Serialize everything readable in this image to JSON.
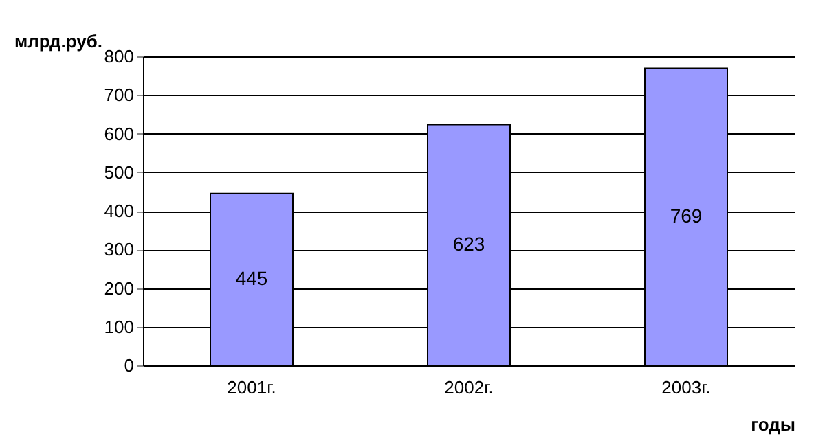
{
  "chart_data": {
    "type": "bar",
    "categories": [
      "2001г.",
      "2002г.",
      "2003г."
    ],
    "values": [
      445,
      623,
      769
    ],
    "color": "#9999ff",
    "ylabel": "млрд.руб.",
    "xlabel": "годы",
    "ylim": [
      0,
      800
    ],
    "yticks": [
      0,
      100,
      200,
      300,
      400,
      500,
      600,
      700,
      800
    ],
    "grid": "y",
    "data_labels": true
  }
}
